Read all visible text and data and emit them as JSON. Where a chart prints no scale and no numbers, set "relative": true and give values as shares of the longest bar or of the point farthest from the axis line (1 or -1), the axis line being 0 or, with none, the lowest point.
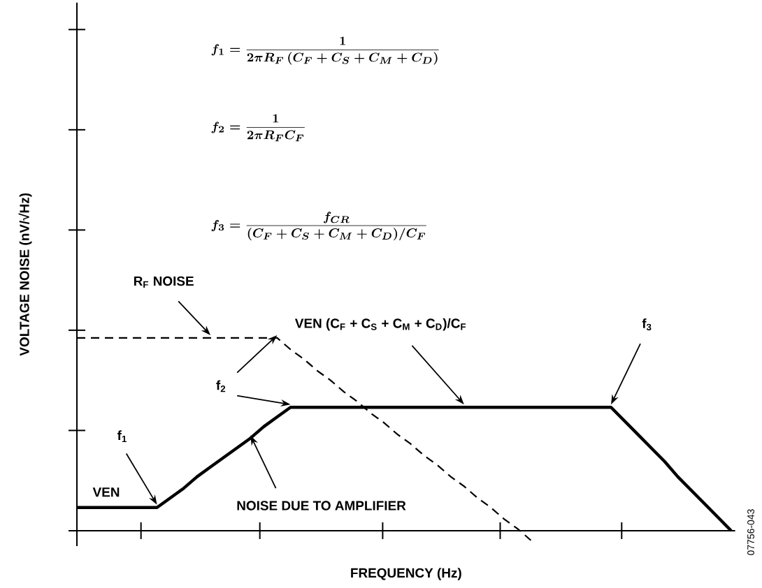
{
  "chart_data": {
    "type": "line",
    "relative": true,
    "xlabel": "FREQUENCY (Hz)",
    "ylabel": "VOLTAGE NOISE (nV/√Hz)",
    "categories": [
      null,
      null,
      null,
      null,
      null,
      null,
      null,
      null,
      null,
      null,
      null,
      null,
      null,
      null,
      null,
      null,
      null,
      null,
      null,
      null,
      null,
      null,
      null,
      null,
      null,
      null,
      null,
      null,
      null,
      null,
      null,
      null,
      null,
      null,
      null,
      null,
      null,
      null,
      null,
      null,
      null,
      null,
      null,
      null,
      null,
      null,
      null,
      null,
      null,
      null
    ],
    "series": [
      {
        "color": "#000000",
        "line_style": "solid",
        "values": [
          0.12,
          0.12,
          0.12,
          0.12,
          0.12,
          0.12,
          0.12,
          0.17,
          0.22,
          0.28,
          0.33,
          0.38,
          0.43,
          0.48,
          0.54,
          0.59,
          0.64,
          0.64,
          0.64,
          0.64,
          0.64,
          0.64,
          0.64,
          0.64,
          0.64,
          0.64,
          0.64,
          0.64,
          0.64,
          0.64,
          0.64,
          0.64,
          0.64,
          0.64,
          0.64,
          0.64,
          0.64,
          0.64,
          0.64,
          0.64,
          0.64,
          0.57,
          0.5,
          0.43,
          0.36,
          0.28,
          0.21,
          0.14,
          0.07,
          0
        ]
      },
      {
        "color": "#000000",
        "line_style": "dashed",
        "values": [
          1,
          1,
          1,
          1,
          1,
          1,
          1,
          1,
          1,
          1,
          1,
          1,
          1,
          1,
          1,
          1,
          0.94,
          0.89,
          0.83,
          0.78,
          0.72,
          0.67,
          0.61,
          0.56,
          0.5,
          0.45,
          0.39,
          0.34,
          0.28,
          0.23,
          0.17,
          0.12,
          0.06,
          0.01,
          -0.05,
          null,
          null,
          null,
          null,
          null,
          null,
          null,
          null,
          null,
          null,
          null,
          null,
          null,
          null,
          null
        ]
      }
    ],
    "annotations": [
      "f_1 = \\frac{1}{2\\pi R_F\\,(C_F + C_S + C_M + C_D)}",
      "f_2 = \\frac{1}{2\\pi R_F C_F}",
      "f_3 = \\frac{f_{CR}}{(C_F + C_S + C_M + C_D)/C_F}",
      "R$_{F}$ NOISE",
      "VEN (C$_{F}$ + C$_{S}$ + C$_{M}$ + C$_{D}$)/C$_{F}$",
      "f$_{3}$",
      "f$_{2}$",
      "f$_{1}$",
      "VEN",
      "NOISE DUE TO AMPLIFIER",
      "07756-043"
    ]
  }
}
